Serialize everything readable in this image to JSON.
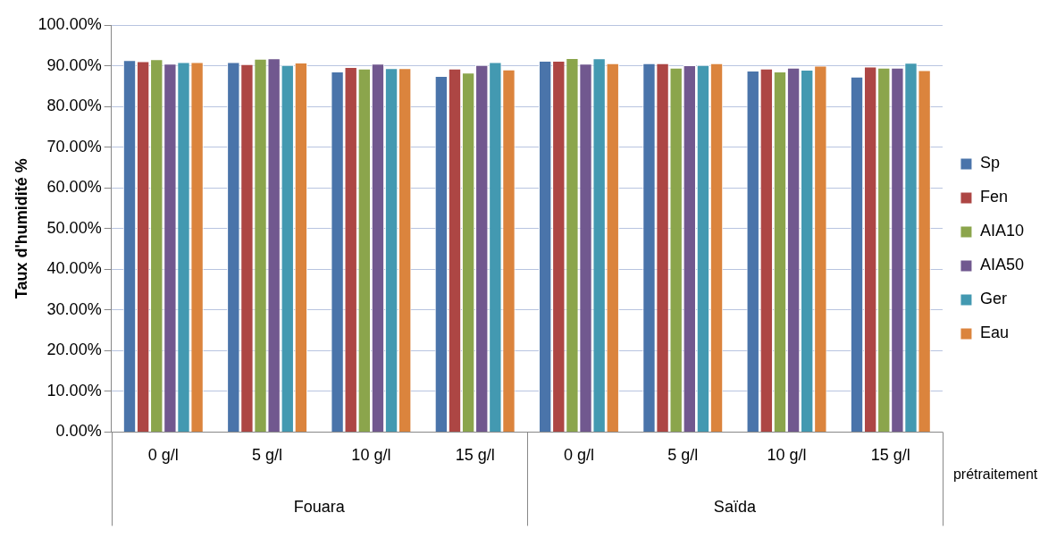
{
  "chart_data": {
    "type": "bar",
    "ylabel": "Taux d'humidité %",
    "xlabel": "prétraitement",
    "categories": [
      "0 g/l",
      "5 g/l",
      "10 g/l",
      "15 g/l",
      "0 g/l",
      "5 g/l",
      "10 g/l",
      "15 g/l"
    ],
    "annotations": [
      "Fouara",
      "Saïda"
    ],
    "series": [
      {
        "name": "Sp",
        "color": "#4a74aa",
        "values": [
          91.4,
          90.9,
          88.6,
          87.5,
          91.2,
          90.6,
          88.8,
          87.3
        ]
      },
      {
        "name": "Fen",
        "color": "#ad4644",
        "values": [
          91.1,
          90.4,
          89.7,
          89.3,
          91.2,
          90.6,
          89.3,
          89.8
        ]
      },
      {
        "name": "AIA10",
        "color": "#8ba54c",
        "values": [
          91.6,
          91.7,
          89.3,
          88.3,
          91.9,
          89.5,
          88.6,
          89.5
        ]
      },
      {
        "name": "AIA50",
        "color": "#71588f",
        "values": [
          90.5,
          91.8,
          90.5,
          90.2,
          90.5,
          90.1,
          89.5,
          89.5
        ]
      },
      {
        "name": "Ger",
        "color": "#4399b1",
        "values": [
          90.9,
          90.2,
          89.4,
          90.9,
          91.8,
          90.2,
          89.0,
          90.7
        ]
      },
      {
        "name": "Eau",
        "color": "#db843d",
        "values": [
          90.9,
          90.8,
          89.4,
          89.1,
          90.6,
          90.6,
          90.0,
          88.9
        ]
      }
    ],
    "ylim": [
      0,
      100
    ],
    "yticks": [
      {
        "value": 0,
        "label": "0.00%"
      },
      {
        "value": 10,
        "label": "10.00%"
      },
      {
        "value": 20,
        "label": "20.00%"
      },
      {
        "value": 30,
        "label": "30.00%"
      },
      {
        "value": 40,
        "label": "40.00%"
      },
      {
        "value": 50,
        "label": "50.00%"
      },
      {
        "value": 60,
        "label": "60.00%"
      },
      {
        "value": 70,
        "label": "70.00%"
      },
      {
        "value": 80,
        "label": "80.00%"
      },
      {
        "value": 90,
        "label": "90.00%"
      },
      {
        "value": 100,
        "label": "100.00%"
      }
    ],
    "grid": "y",
    "legend": "right"
  }
}
